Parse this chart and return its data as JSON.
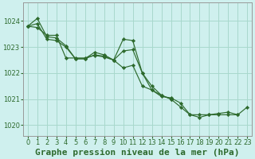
{
  "title": "Graphe pression niveau de la mer (hPa)",
  "background_color": "#cff0ee",
  "grid_color": "#a8d8cc",
  "line_color": "#2d6a2d",
  "marker_color": "#2d6a2d",
  "xlim": [
    -0.5,
    23.5
  ],
  "ylim": [
    1019.6,
    1024.7
  ],
  "yticks": [
    1020,
    1021,
    1022,
    1023,
    1024
  ],
  "xticks": [
    0,
    1,
    2,
    3,
    4,
    5,
    6,
    7,
    8,
    9,
    10,
    11,
    12,
    13,
    14,
    15,
    16,
    17,
    18,
    19,
    20,
    21,
    22,
    23
  ],
  "series": [
    {
      "x": [
        0,
        1,
        2,
        3,
        4,
        5,
        6,
        7,
        8,
        9,
        10,
        11,
        12,
        13,
        14,
        15,
        16,
        17,
        18,
        19,
        20,
        21,
        22,
        23
      ],
      "y": [
        1023.8,
        1024.1,
        1023.4,
        1023.35,
        1023.05,
        1022.55,
        1022.55,
        1022.8,
        1022.7,
        1022.5,
        1023.3,
        1023.25,
        1022.0,
        1021.35,
        1021.1,
        1021.05,
        1020.85,
        1020.4,
        1020.3,
        1020.4,
        1020.45,
        1020.5,
        1020.4,
        1020.7
      ]
    },
    {
      "x": [
        0,
        1,
        2,
        3,
        4,
        5,
        6,
        7,
        8,
        9,
        10,
        11,
        12,
        13,
        14,
        15
      ],
      "y": [
        1023.8,
        1023.9,
        1023.3,
        1023.25,
        1023.0,
        1022.55,
        1022.55,
        1022.7,
        1022.65,
        1022.5,
        1022.85,
        1022.9,
        1022.0,
        1021.5,
        1021.15,
        1021.0
      ]
    },
    {
      "x": [
        0,
        1,
        2,
        3,
        4,
        5,
        6,
        7,
        8,
        9,
        10,
        11,
        12,
        13,
        14,
        15,
        16,
        17,
        18,
        19,
        20,
        21,
        22,
        23
      ],
      "y": [
        1023.8,
        1023.75,
        1023.45,
        1023.45,
        1022.58,
        1022.58,
        1022.58,
        1022.68,
        1022.62,
        1022.5,
        1022.2,
        1022.3,
        1021.5,
        1021.35,
        1021.15,
        1021.0,
        1020.7,
        1020.4,
        1020.4,
        1020.4,
        1020.4,
        1020.4,
        1020.4,
        null
      ]
    }
  ],
  "title_fontsize": 8,
  "tick_fontsize": 6
}
